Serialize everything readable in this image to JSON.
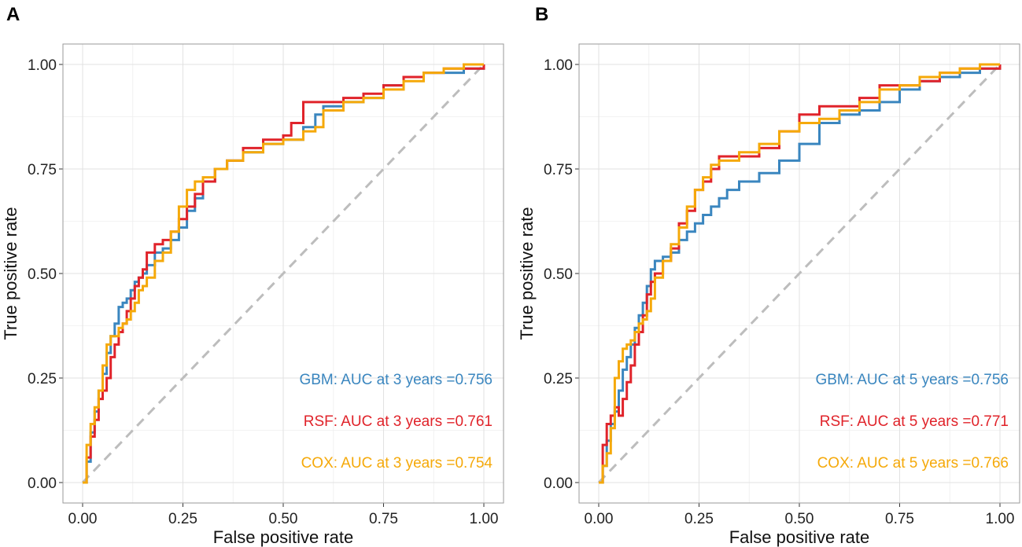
{
  "chart_data": [
    {
      "panel_label": "A",
      "type": "line",
      "xlabel": "False positive rate",
      "ylabel": "True positive rate",
      "xlim": [
        0,
        1
      ],
      "ylim": [
        0,
        1
      ],
      "x_ticks": [
        "0.00",
        "0.25",
        "0.50",
        "0.75",
        "1.00"
      ],
      "y_ticks": [
        "0.00",
        "0.25",
        "0.50",
        "0.75",
        "1.00"
      ],
      "grid": true,
      "reference_line": {
        "x": [
          0,
          1
        ],
        "y": [
          0,
          1
        ],
        "color": "#bdbdbd",
        "style": "dashed"
      },
      "series": [
        {
          "name": "GBM",
          "color": "#3a86bf",
          "label": "GBM: AUC at 3 years =0.756",
          "x": [
            0,
            0.01,
            0.02,
            0.03,
            0.04,
            0.05,
            0.06,
            0.07,
            0.08,
            0.09,
            0.1,
            0.11,
            0.12,
            0.13,
            0.14,
            0.15,
            0.16,
            0.18,
            0.2,
            0.22,
            0.24,
            0.26,
            0.28,
            0.3,
            0.33,
            0.36,
            0.4,
            0.45,
            0.5,
            0.55,
            0.58,
            0.6,
            0.65,
            0.7,
            0.75,
            0.8,
            0.85,
            0.9,
            0.95,
            1.0
          ],
          "y": [
            0,
            0.05,
            0.12,
            0.17,
            0.22,
            0.26,
            0.31,
            0.35,
            0.38,
            0.42,
            0.43,
            0.44,
            0.46,
            0.48,
            0.49,
            0.5,
            0.52,
            0.55,
            0.56,
            0.58,
            0.61,
            0.65,
            0.68,
            0.72,
            0.75,
            0.77,
            0.79,
            0.81,
            0.82,
            0.85,
            0.88,
            0.9,
            0.91,
            0.92,
            0.95,
            0.97,
            0.98,
            0.98,
            0.99,
            1.0
          ]
        },
        {
          "name": "RSF",
          "color": "#e0232a",
          "label": "RSF:  AUC at 3 years =0.761",
          "x": [
            0,
            0.01,
            0.02,
            0.03,
            0.04,
            0.05,
            0.06,
            0.07,
            0.08,
            0.09,
            0.1,
            0.11,
            0.12,
            0.13,
            0.14,
            0.15,
            0.16,
            0.18,
            0.2,
            0.22,
            0.24,
            0.26,
            0.28,
            0.3,
            0.33,
            0.36,
            0.4,
            0.45,
            0.5,
            0.52,
            0.55,
            0.6,
            0.65,
            0.7,
            0.75,
            0.8,
            0.85,
            0.9,
            0.95,
            1.0
          ],
          "y": [
            0,
            0.06,
            0.11,
            0.15,
            0.2,
            0.22,
            0.25,
            0.3,
            0.33,
            0.36,
            0.38,
            0.41,
            0.44,
            0.47,
            0.49,
            0.51,
            0.55,
            0.57,
            0.58,
            0.6,
            0.63,
            0.66,
            0.69,
            0.72,
            0.75,
            0.77,
            0.8,
            0.82,
            0.83,
            0.86,
            0.91,
            0.91,
            0.92,
            0.93,
            0.95,
            0.97,
            0.98,
            0.99,
            0.99,
            1.0
          ]
        },
        {
          "name": "COX",
          "color": "#f5a90a",
          "label": "COX: AUC at 3 years =0.754",
          "x": [
            0,
            0.01,
            0.02,
            0.03,
            0.04,
            0.05,
            0.06,
            0.07,
            0.08,
            0.09,
            0.1,
            0.11,
            0.12,
            0.13,
            0.14,
            0.15,
            0.16,
            0.18,
            0.2,
            0.22,
            0.24,
            0.26,
            0.28,
            0.3,
            0.33,
            0.36,
            0.4,
            0.45,
            0.5,
            0.55,
            0.58,
            0.6,
            0.65,
            0.7,
            0.75,
            0.8,
            0.85,
            0.9,
            0.95,
            1.0
          ],
          "y": [
            0,
            0.09,
            0.14,
            0.18,
            0.22,
            0.28,
            0.33,
            0.35,
            0.35,
            0.37,
            0.38,
            0.39,
            0.41,
            0.43,
            0.46,
            0.47,
            0.49,
            0.53,
            0.55,
            0.6,
            0.66,
            0.7,
            0.72,
            0.73,
            0.75,
            0.77,
            0.79,
            0.81,
            0.82,
            0.84,
            0.85,
            0.89,
            0.91,
            0.92,
            0.94,
            0.96,
            0.98,
            0.99,
            1.0,
            1.0
          ]
        }
      ]
    },
    {
      "panel_label": "B",
      "type": "line",
      "xlabel": "False positive rate",
      "ylabel": "True positive rate",
      "xlim": [
        0,
        1
      ],
      "ylim": [
        0,
        1
      ],
      "x_ticks": [
        "0.00",
        "0.25",
        "0.50",
        "0.75",
        "1.00"
      ],
      "y_ticks": [
        "0.00",
        "0.25",
        "0.50",
        "0.75",
        "1.00"
      ],
      "grid": true,
      "reference_line": {
        "x": [
          0,
          1
        ],
        "y": [
          0,
          1
        ],
        "color": "#bdbdbd",
        "style": "dashed"
      },
      "series": [
        {
          "name": "GBM",
          "color": "#3a86bf",
          "label": "GBM: AUC at 5 years =0.756",
          "x": [
            0,
            0.01,
            0.02,
            0.03,
            0.04,
            0.05,
            0.06,
            0.07,
            0.08,
            0.09,
            0.1,
            0.11,
            0.12,
            0.13,
            0.14,
            0.16,
            0.18,
            0.2,
            0.22,
            0.24,
            0.26,
            0.28,
            0.3,
            0.32,
            0.35,
            0.4,
            0.45,
            0.5,
            0.55,
            0.6,
            0.65,
            0.7,
            0.75,
            0.8,
            0.85,
            0.9,
            0.95,
            1.0
          ],
          "y": [
            0,
            0.04,
            0.1,
            0.14,
            0.17,
            0.22,
            0.27,
            0.3,
            0.33,
            0.37,
            0.4,
            0.43,
            0.47,
            0.51,
            0.53,
            0.54,
            0.55,
            0.58,
            0.6,
            0.62,
            0.64,
            0.66,
            0.68,
            0.7,
            0.72,
            0.74,
            0.77,
            0.81,
            0.86,
            0.88,
            0.89,
            0.91,
            0.94,
            0.96,
            0.97,
            0.98,
            0.99,
            1.0
          ]
        },
        {
          "name": "RSF",
          "color": "#e0232a",
          "label": "RSF:  AUC at 5 years =0.771",
          "x": [
            0,
            0.01,
            0.02,
            0.03,
            0.04,
            0.05,
            0.06,
            0.07,
            0.08,
            0.09,
            0.1,
            0.11,
            0.12,
            0.13,
            0.14,
            0.16,
            0.18,
            0.2,
            0.22,
            0.24,
            0.26,
            0.28,
            0.3,
            0.32,
            0.35,
            0.4,
            0.45,
            0.5,
            0.55,
            0.6,
            0.65,
            0.7,
            0.75,
            0.8,
            0.85,
            0.9,
            0.95,
            1.0
          ],
          "y": [
            0,
            0.09,
            0.14,
            0.16,
            0.18,
            0.16,
            0.2,
            0.24,
            0.28,
            0.33,
            0.36,
            0.4,
            0.45,
            0.48,
            0.5,
            0.53,
            0.56,
            0.62,
            0.65,
            0.7,
            0.72,
            0.75,
            0.78,
            0.78,
            0.78,
            0.8,
            0.84,
            0.88,
            0.9,
            0.9,
            0.92,
            0.95,
            0.95,
            0.96,
            0.98,
            0.99,
            0.99,
            1.0
          ]
        },
        {
          "name": "COX",
          "color": "#f5a90a",
          "label": "COX: AUC at 5 years =0.766",
          "x": [
            0,
            0.01,
            0.02,
            0.03,
            0.04,
            0.05,
            0.06,
            0.07,
            0.08,
            0.09,
            0.1,
            0.11,
            0.12,
            0.13,
            0.14,
            0.16,
            0.18,
            0.2,
            0.22,
            0.24,
            0.26,
            0.28,
            0.3,
            0.32,
            0.35,
            0.4,
            0.45,
            0.5,
            0.55,
            0.6,
            0.65,
            0.7,
            0.75,
            0.8,
            0.85,
            0.9,
            0.95,
            1.0
          ],
          "y": [
            0,
            0.04,
            0.07,
            0.13,
            0.25,
            0.29,
            0.32,
            0.33,
            0.34,
            0.36,
            0.38,
            0.39,
            0.41,
            0.44,
            0.49,
            0.53,
            0.57,
            0.61,
            0.66,
            0.7,
            0.73,
            0.76,
            0.77,
            0.77,
            0.79,
            0.81,
            0.84,
            0.86,
            0.87,
            0.89,
            0.91,
            0.94,
            0.95,
            0.97,
            0.98,
            0.99,
            1.0,
            1.0
          ]
        }
      ]
    }
  ]
}
